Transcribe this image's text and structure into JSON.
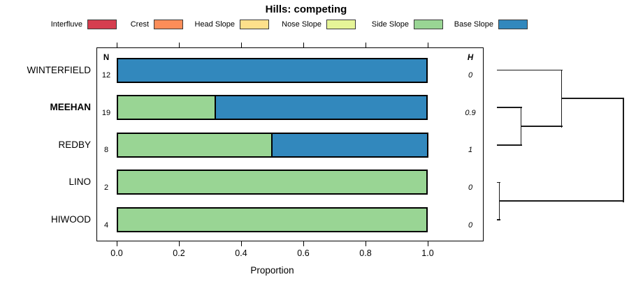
{
  "title": "Hills: competing",
  "columns": {
    "n": "N",
    "h": "H"
  },
  "chart_data": {
    "type": "bar",
    "orientation": "horizontal",
    "stacked": true,
    "title": "Hills: competing",
    "xlabel": "Proportion",
    "xlim": [
      0,
      1
    ],
    "x_ticks": [
      0,
      0.2,
      0.4,
      0.6,
      0.8,
      1.0
    ],
    "x_tick_labels": [
      "0.0",
      "0.2",
      "0.4",
      "0.6",
      "0.8",
      "1.0"
    ],
    "legend_position": "top",
    "grid": false,
    "categories": [
      "Interfluve",
      "Crest",
      "Head Slope",
      "Nose Slope",
      "Side Slope",
      "Base Slope"
    ],
    "category_colors": {
      "Interfluve": "#D53E4F",
      "Crest": "#FC8D59",
      "Head Slope": "#FEE08B",
      "Nose Slope": "#E6F598",
      "Side Slope": "#99D594",
      "Base Slope": "#3288BD"
    },
    "rows": [
      {
        "label": "WINTERFIELD",
        "emphasized": false,
        "n": 12,
        "h": "0",
        "segments": [
          {
            "category": "Base Slope",
            "value": 1.0
          }
        ]
      },
      {
        "label": "MEEHAN",
        "emphasized": true,
        "n": 19,
        "h": "0.9",
        "segments": [
          {
            "category": "Side Slope",
            "value": 0.32
          },
          {
            "category": "Base Slope",
            "value": 0.68
          }
        ]
      },
      {
        "label": "REDBY",
        "emphasized": false,
        "n": 8,
        "h": "1",
        "segments": [
          {
            "category": "Side Slope",
            "value": 0.5
          },
          {
            "category": "Base Slope",
            "value": 0.5
          }
        ]
      },
      {
        "label": "LINO",
        "emphasized": false,
        "n": 2,
        "h": "0",
        "segments": [
          {
            "category": "Side Slope",
            "value": 1.0
          }
        ]
      },
      {
        "label": "HIWOOD",
        "emphasized": false,
        "n": 4,
        "h": "0",
        "segments": [
          {
            "category": "Side Slope",
            "value": 1.0
          }
        ]
      }
    ],
    "dendrogram": {
      "heights_normalized": true,
      "leaf_order": [
        "WINTERFIELD",
        "MEEHAN",
        "REDBY",
        "LINO",
        "HIWOOD"
      ],
      "merges": [
        {
          "id": "m1",
          "a": "MEEHAN",
          "b": "REDBY",
          "height": 0.19
        },
        {
          "id": "m2",
          "a": "WINTERFIELD",
          "b": "m1",
          "height": 0.51
        },
        {
          "id": "m3",
          "a": "LINO",
          "b": "HIWOOD",
          "height": 0.02
        },
        {
          "id": "m4",
          "a": "m2",
          "b": "m3",
          "height": 1.0
        }
      ]
    }
  }
}
